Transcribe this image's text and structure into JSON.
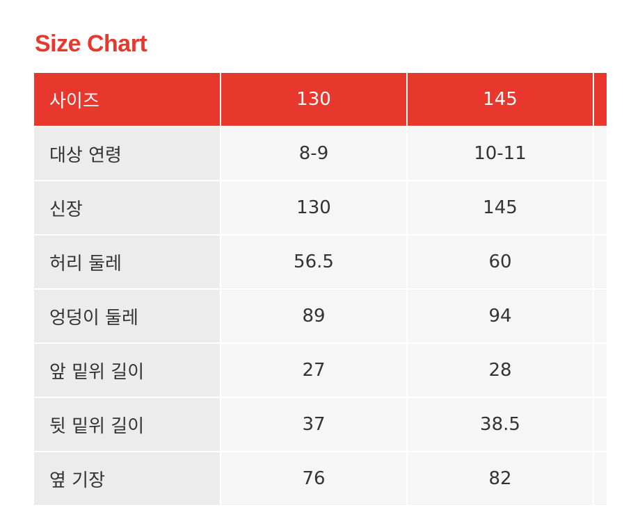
{
  "title": "Size Chart",
  "table": {
    "header": [
      "사이즈",
      "130",
      "145"
    ],
    "rows": [
      [
        "대상 연령",
        "8-9",
        "10-11"
      ],
      [
        "신장",
        "130",
        "145"
      ],
      [
        "허리 둘레",
        "56.5",
        "60"
      ],
      [
        "엉덩이 둘레",
        "89",
        "94"
      ],
      [
        "앞 밑위 길이",
        "27",
        "28"
      ],
      [
        "뒷 밑위 길이",
        "37",
        "38.5"
      ],
      [
        "옆 기장",
        "76",
        "82"
      ]
    ]
  }
}
